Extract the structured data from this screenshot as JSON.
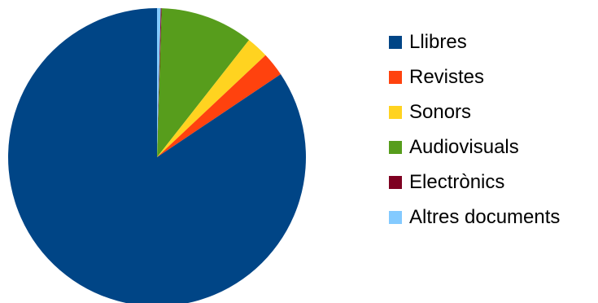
{
  "chart_data": {
    "type": "pie",
    "title": "",
    "categories": [
      "Llibres",
      "Revistes",
      "Sonors",
      "Audiovisuals",
      "Electrònics",
      "Altres documents"
    ],
    "values": [
      84.4,
      2.6,
      2.4,
      10.1,
      0.1,
      0.4
    ],
    "colors": [
      "#004586",
      "#ff420e",
      "#ffd320",
      "#579d1c",
      "#7e0021",
      "#83caff"
    ],
    "legend_position": "right"
  }
}
